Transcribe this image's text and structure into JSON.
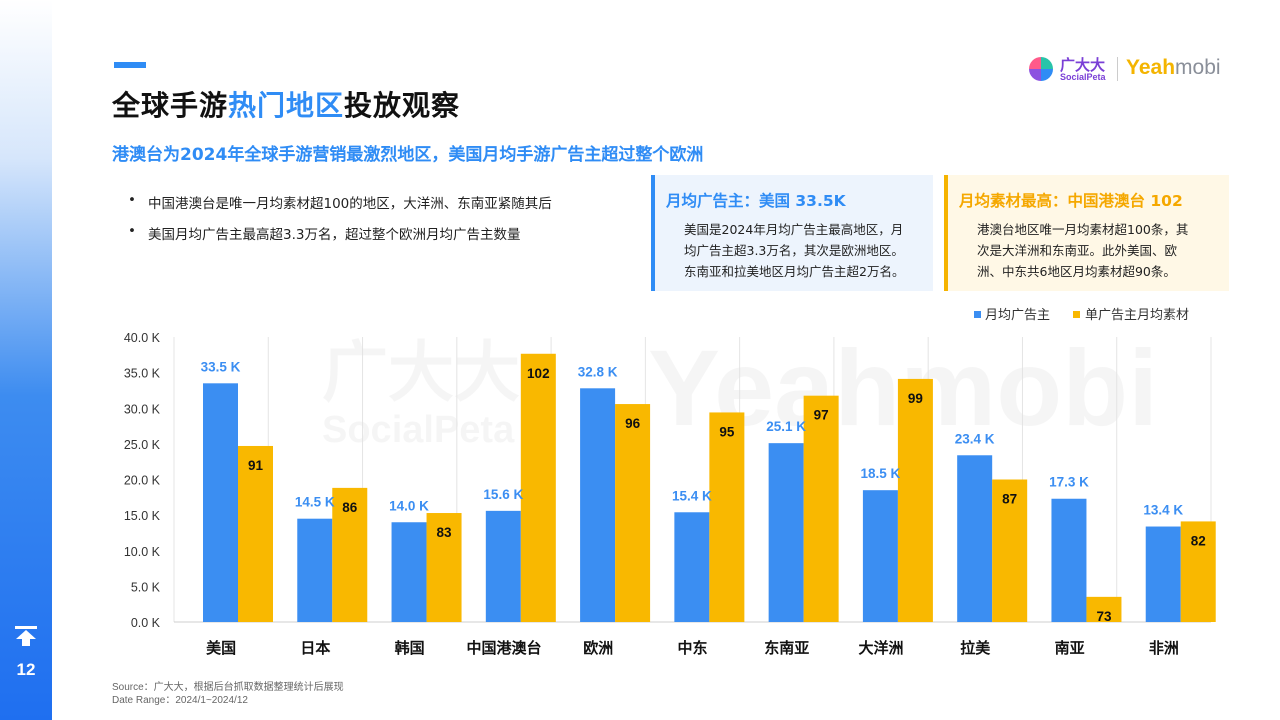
{
  "page_number": "12",
  "header": {
    "title_pre": "全球手游",
    "title_highlight": "热门地区",
    "title_post": "投放观察",
    "subtitle": "港澳台为2024年全球手游营销最激烈地区，美国月均手游广告主超过整个欧洲"
  },
  "logos": {
    "socialpeta_cn": "广大大",
    "socialpeta_en": "SocialPeta",
    "yeahmobi_a": "Yeah",
    "yeahmobi_b": "mobi"
  },
  "bullets": [
    "中国港澳台是唯一月均素材超100的地区，大洋洲、东南亚紧随其后",
    "美国月均广告主最高超3.3万名，超过整个欧洲月均广告主数量"
  ],
  "callouts": [
    {
      "title": "月均广告主：美国 33.5K",
      "lines": [
        "美国是2024年月均广告主最高地区，月",
        "均广告主超3.3万名，其次是欧洲地区。",
        "东南亚和拉美地区月均广告主超2万名。"
      ]
    },
    {
      "title": "月均素材最高：中国港澳台 102",
      "lines": [
        "港澳台地区唯一月均素材超100条，其",
        "次是大洋洲和东南亚。此外美国、欧",
        "洲、中东共6地区月均素材超90条。"
      ]
    }
  ],
  "source": {
    "line1": "Source：广大大，根据后台抓取数据整理统计后展现",
    "line2": "Date Range：2024/1~2024/12"
  },
  "colors": {
    "accent_blue": "#3b8ef2",
    "accent_yellow": "#f9b800"
  },
  "chart_data": {
    "type": "bar",
    "categories": [
      "美国",
      "日本",
      "韩国",
      "中国港澳台",
      "欧洲",
      "中东",
      "东南亚",
      "大洋洲",
      "拉美",
      "南亚",
      "非洲"
    ],
    "series": [
      {
        "name": "月均广告主",
        "values": [
          33.5,
          14.5,
          14.0,
          15.6,
          32.8,
          15.4,
          25.1,
          18.5,
          23.4,
          17.3,
          13.4
        ],
        "labels": [
          "33.5 K",
          "14.5 K",
          "14.0 K",
          "15.6 K",
          "32.8 K",
          "15.4 K",
          "25.1 K",
          "18.5 K",
          "23.4 K",
          "17.3 K",
          "13.4 K"
        ],
        "color": "#3b8ef2"
      },
      {
        "name": "单广告主月均素材",
        "values": [
          91,
          86,
          83,
          102,
          96,
          95,
          97,
          99,
          87,
          73,
          82
        ],
        "labels": [
          "91",
          "86",
          "83",
          "102",
          "96",
          "95",
          "97",
          "99",
          "87",
          "73",
          "82"
        ],
        "color": "#f9b800"
      }
    ],
    "y_ticks": [
      "0.0 K",
      "5.0 K",
      "10.0 K",
      "15.0 K",
      "20.0 K",
      "25.0 K",
      "30.0 K",
      "35.0 K",
      "40.0 K"
    ],
    "ylim": [
      0,
      40
    ],
    "secondary_ylim": [
      70,
      104
    ],
    "grid": "vertical-separators",
    "legend_position": "top-right",
    "watermark": {
      "cn": "广大大",
      "en": "SocialPeta",
      "brand": "Yeahmobi"
    }
  }
}
